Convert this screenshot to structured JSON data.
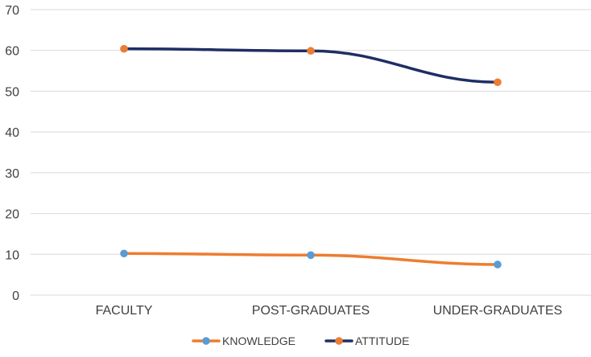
{
  "chart_data": {
    "type": "line",
    "title": "",
    "xlabel": "",
    "ylabel": "",
    "categories": [
      "FACULTY",
      "POST-GRADUATES",
      "UNDER-GRADUATES"
    ],
    "ylim": [
      0,
      70
    ],
    "yticks": [
      0,
      10,
      20,
      30,
      40,
      50,
      60,
      70
    ],
    "grid": true,
    "legend_position": "bottom",
    "series": [
      {
        "name": "KNOWLEDGE",
        "values": [
          10.2,
          9.8,
          7.5
        ],
        "line_color": "#ED7D31",
        "marker_color": "#5B9BD5"
      },
      {
        "name": "ATTITUDE",
        "values": [
          60.4,
          59.9,
          52.2
        ],
        "line_color": "#1F2E64",
        "marker_color": "#ED7D31"
      }
    ]
  }
}
